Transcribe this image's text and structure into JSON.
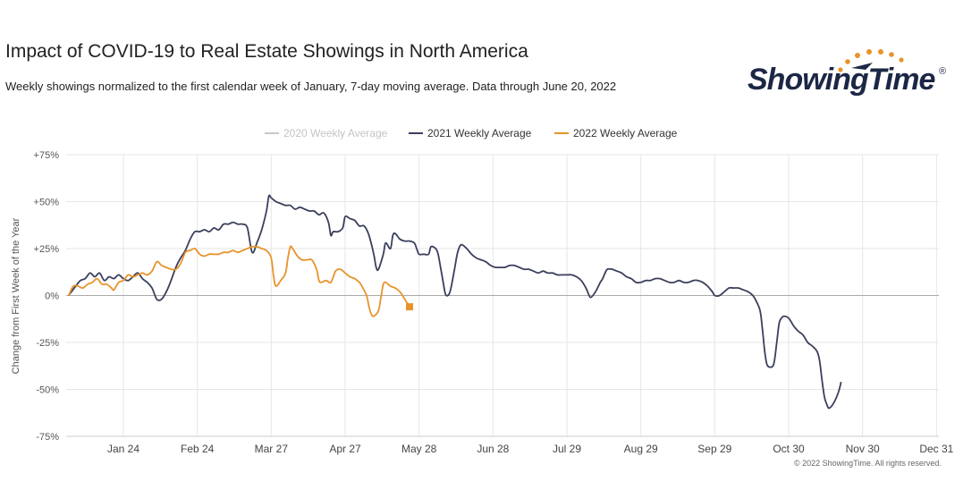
{
  "header": {
    "title": "Impact of COVID-19 to Real Estate Showings in North America",
    "subtitle": "Weekly showings normalized to the first calendar week of January, 7-day moving average. Data through June 20, 2022"
  },
  "logo": {
    "text": "ShowingTime",
    "registered": "®"
  },
  "footer": {
    "copyright": "© 2022 ShowingTime. All rights reserved."
  },
  "colors": {
    "2020": "#c8c8c8",
    "2021": "#3a3f5c",
    "2022": "#e8932a",
    "zero_line": "#aaaaaa",
    "grid": "#e6e6e6"
  },
  "chart_data": {
    "type": "line",
    "title": "Impact of COVID-19 to Real Estate Showings in North America",
    "ylabel": "Change from First Week of the Year",
    "ylim": [
      -75,
      75
    ],
    "xlim": [
      "Jan 1",
      "Dec 31"
    ],
    "y_ticks": [
      75,
      50,
      25,
      0,
      -25,
      -50,
      -75
    ],
    "y_tick_labels": [
      "+75%",
      "+50%",
      "+25%",
      "0%",
      "-25%",
      "-50%",
      "-75%"
    ],
    "x_ticks": [
      {
        "label": "Jan 24",
        "day": 24
      },
      {
        "label": "Feb 24",
        "day": 55
      },
      {
        "label": "Mar 27",
        "day": 86
      },
      {
        "label": "Apr 27",
        "day": 117
      },
      {
        "label": "May 28",
        "day": 148
      },
      {
        "label": "Jun 28",
        "day": 179
      },
      {
        "label": "Jul 29",
        "day": 210
      },
      {
        "label": "Aug 29",
        "day": 241
      },
      {
        "label": "Sep 29",
        "day": 272
      },
      {
        "label": "Oct 30",
        "day": 303
      },
      {
        "label": "Nov 30",
        "day": 334
      },
      {
        "label": "Dec 31",
        "day": 365
      }
    ],
    "legend_position": "top-center",
    "series": [
      {
        "name": "2020 Weekly Average",
        "hidden": true,
        "points": []
      },
      {
        "name": "2021 Weekly Average",
        "points": [
          [
            1,
            0
          ],
          [
            4,
            5
          ],
          [
            6,
            8
          ],
          [
            8,
            9
          ],
          [
            10,
            12
          ],
          [
            12,
            10
          ],
          [
            14,
            12
          ],
          [
            16,
            8
          ],
          [
            18,
            10
          ],
          [
            20,
            9
          ],
          [
            22,
            11
          ],
          [
            24,
            9
          ],
          [
            26,
            8
          ],
          [
            28,
            10
          ],
          [
            30,
            12
          ],
          [
            32,
            9
          ],
          [
            34,
            7
          ],
          [
            36,
            4
          ],
          [
            38,
            -2
          ],
          [
            40,
            -2
          ],
          [
            42,
            2
          ],
          [
            44,
            8
          ],
          [
            46,
            15
          ],
          [
            48,
            20
          ],
          [
            50,
            24
          ],
          [
            52,
            30
          ],
          [
            54,
            34
          ],
          [
            56,
            34
          ],
          [
            58,
            35
          ],
          [
            60,
            34
          ],
          [
            62,
            36
          ],
          [
            64,
            35
          ],
          [
            66,
            38
          ],
          [
            68,
            38
          ],
          [
            70,
            39
          ],
          [
            72,
            38
          ],
          [
            74,
            38
          ],
          [
            76,
            36
          ],
          [
            78,
            23
          ],
          [
            80,
            28
          ],
          [
            82,
            35
          ],
          [
            84,
            45
          ],
          [
            85,
            53
          ],
          [
            86,
            52
          ],
          [
            88,
            50
          ],
          [
            90,
            49
          ],
          [
            92,
            48
          ],
          [
            94,
            48
          ],
          [
            96,
            46
          ],
          [
            98,
            47
          ],
          [
            100,
            46
          ],
          [
            102,
            45
          ],
          [
            104,
            45
          ],
          [
            106,
            43
          ],
          [
            108,
            44
          ],
          [
            110,
            39
          ],
          [
            111,
            32
          ],
          [
            112,
            34
          ],
          [
            114,
            34
          ],
          [
            116,
            36
          ],
          [
            117,
            42
          ],
          [
            119,
            41
          ],
          [
            121,
            40
          ],
          [
            123,
            37
          ],
          [
            125,
            37
          ],
          [
            127,
            32
          ],
          [
            129,
            22
          ],
          [
            130,
            15
          ],
          [
            131,
            14
          ],
          [
            133,
            22
          ],
          [
            134,
            28
          ],
          [
            136,
            25
          ],
          [
            137,
            32
          ],
          [
            138,
            33
          ],
          [
            140,
            30
          ],
          [
            142,
            29
          ],
          [
            144,
            29
          ],
          [
            146,
            28
          ],
          [
            147,
            25
          ],
          [
            148,
            22
          ],
          [
            150,
            22
          ],
          [
            152,
            22
          ],
          [
            153,
            26
          ],
          [
            155,
            25
          ],
          [
            156,
            22
          ],
          [
            157,
            15
          ],
          [
            158,
            8
          ],
          [
            159,
            1
          ],
          [
            160,
            0
          ],
          [
            161,
            2
          ],
          [
            162,
            8
          ],
          [
            163,
            15
          ],
          [
            164,
            22
          ],
          [
            165,
            26
          ],
          [
            166,
            27
          ],
          [
            168,
            25
          ],
          [
            170,
            22
          ],
          [
            172,
            20
          ],
          [
            174,
            19
          ],
          [
            176,
            18
          ],
          [
            178,
            16
          ],
          [
            180,
            15
          ],
          [
            182,
            15
          ],
          [
            184,
            15
          ],
          [
            186,
            16
          ],
          [
            188,
            16
          ],
          [
            190,
            15
          ],
          [
            192,
            14
          ],
          [
            194,
            14
          ],
          [
            196,
            13
          ],
          [
            198,
            12
          ],
          [
            200,
            13
          ],
          [
            202,
            12
          ],
          [
            204,
            12
          ],
          [
            206,
            11
          ],
          [
            208,
            11
          ],
          [
            210,
            11
          ],
          [
            212,
            11
          ],
          [
            214,
            10
          ],
          [
            216,
            8
          ],
          [
            218,
            4
          ],
          [
            219,
            1
          ],
          [
            220,
            -1
          ],
          [
            222,
            2
          ],
          [
            224,
            7
          ],
          [
            225,
            9
          ],
          [
            226,
            12
          ],
          [
            227,
            14
          ],
          [
            229,
            14
          ],
          [
            231,
            13
          ],
          [
            233,
            12
          ],
          [
            235,
            10
          ],
          [
            237,
            9
          ],
          [
            239,
            7
          ],
          [
            241,
            7
          ],
          [
            243,
            8
          ],
          [
            245,
            8
          ],
          [
            247,
            9
          ],
          [
            249,
            9
          ],
          [
            251,
            8
          ],
          [
            253,
            7
          ],
          [
            255,
            7
          ],
          [
            257,
            8
          ],
          [
            259,
            7
          ],
          [
            261,
            7
          ],
          [
            263,
            8
          ],
          [
            265,
            8
          ],
          [
            267,
            7
          ],
          [
            269,
            5
          ],
          [
            271,
            2
          ],
          [
            272,
            0
          ],
          [
            274,
            0
          ],
          [
            276,
            2
          ],
          [
            278,
            4
          ],
          [
            280,
            4
          ],
          [
            282,
            4
          ],
          [
            284,
            3
          ],
          [
            286,
            2
          ],
          [
            288,
            0
          ],
          [
            289,
            -2
          ],
          [
            291,
            -8
          ],
          [
            292,
            -18
          ],
          [
            293,
            -30
          ],
          [
            294,
            -37
          ],
          [
            296,
            -38
          ],
          [
            297,
            -35
          ],
          [
            298,
            -25
          ],
          [
            299,
            -15
          ],
          [
            300,
            -12
          ],
          [
            301,
            -11
          ],
          [
            303,
            -12
          ],
          [
            305,
            -16
          ],
          [
            307,
            -19
          ],
          [
            309,
            -21
          ],
          [
            311,
            -25
          ],
          [
            313,
            -27
          ],
          [
            315,
            -30
          ],
          [
            316,
            -35
          ],
          [
            317,
            -45
          ],
          [
            318,
            -54
          ],
          [
            319,
            -58
          ],
          [
            320,
            -60
          ],
          [
            322,
            -57
          ],
          [
            324,
            -51
          ],
          [
            325,
            -46
          ]
        ]
      },
      {
        "name": "2022 Weekly Average",
        "points": [
          [
            1,
            0
          ],
          [
            3,
            5
          ],
          [
            5,
            5
          ],
          [
            7,
            4
          ],
          [
            9,
            6
          ],
          [
            11,
            7
          ],
          [
            13,
            9
          ],
          [
            15,
            6
          ],
          [
            17,
            6
          ],
          [
            19,
            4
          ],
          [
            20,
            3
          ],
          [
            22,
            7
          ],
          [
            24,
            8
          ],
          [
            26,
            11
          ],
          [
            28,
            10
          ],
          [
            30,
            11
          ],
          [
            32,
            12
          ],
          [
            34,
            11
          ],
          [
            36,
            13
          ],
          [
            38,
            18
          ],
          [
            40,
            16
          ],
          [
            42,
            15
          ],
          [
            44,
            14
          ],
          [
            46,
            14
          ],
          [
            48,
            17
          ],
          [
            50,
            23
          ],
          [
            52,
            24
          ],
          [
            54,
            25
          ],
          [
            56,
            22
          ],
          [
            58,
            21
          ],
          [
            60,
            22
          ],
          [
            62,
            22
          ],
          [
            64,
            22
          ],
          [
            66,
            23
          ],
          [
            68,
            23
          ],
          [
            70,
            24
          ],
          [
            72,
            23
          ],
          [
            74,
            24
          ],
          [
            76,
            25
          ],
          [
            78,
            26
          ],
          [
            80,
            26
          ],
          [
            82,
            25
          ],
          [
            84,
            24
          ],
          [
            86,
            20
          ],
          [
            87,
            10
          ],
          [
            88,
            5
          ],
          [
            90,
            8
          ],
          [
            92,
            12
          ],
          [
            93,
            20
          ],
          [
            94,
            26
          ],
          [
            95,
            25
          ],
          [
            97,
            21
          ],
          [
            99,
            19
          ],
          [
            101,
            19
          ],
          [
            103,
            19
          ],
          [
            105,
            14
          ],
          [
            106,
            8
          ],
          [
            107,
            7
          ],
          [
            109,
            8
          ],
          [
            111,
            7
          ],
          [
            113,
            13
          ],
          [
            115,
            14
          ],
          [
            117,
            12
          ],
          [
            119,
            10
          ],
          [
            121,
            9
          ],
          [
            123,
            7
          ],
          [
            124,
            5
          ],
          [
            126,
            0
          ],
          [
            127,
            -6
          ],
          [
            128,
            -10
          ],
          [
            129,
            -11
          ],
          [
            131,
            -8
          ],
          [
            132,
            -1
          ],
          [
            133,
            6
          ],
          [
            134,
            7
          ],
          [
            136,
            5
          ],
          [
            138,
            4
          ],
          [
            140,
            2
          ],
          [
            142,
            -2
          ],
          [
            144,
            -6
          ]
        ]
      }
    ]
  }
}
